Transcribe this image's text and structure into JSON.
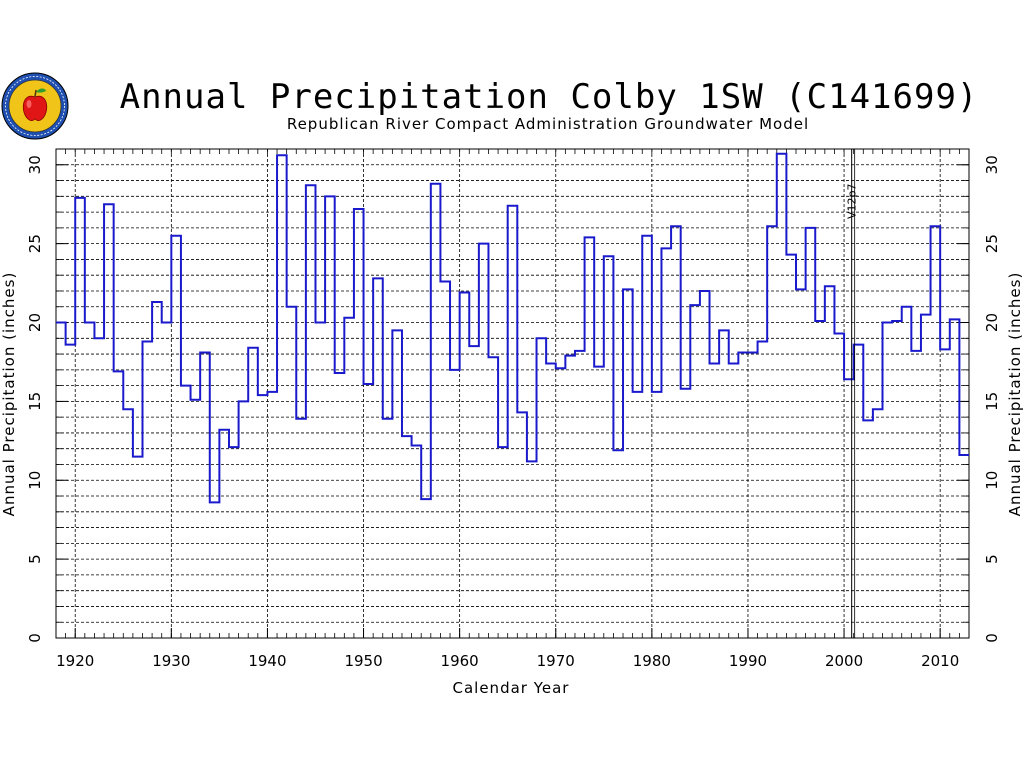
{
  "chart_data": {
    "type": "line",
    "step": true,
    "title": "Annual Precipitation Colby 1SW (C141699)",
    "subtitle": "Republican River Compact Administration Groundwater Model",
    "xlabel": "Calendar Year",
    "ylabel": "Annual Precipitation (inches)",
    "xlim": [
      1918,
      2013
    ],
    "ylim": [
      0,
      31
    ],
    "x_ticks": [
      1920,
      1930,
      1940,
      1950,
      1960,
      1970,
      1980,
      1990,
      2000,
      2010
    ],
    "y_ticks": [
      0,
      5,
      10,
      15,
      20,
      25,
      30
    ],
    "grid": true,
    "series": [
      {
        "color": "#1a1acc",
        "x": [
          1918,
          1919,
          1920,
          1921,
          1922,
          1923,
          1924,
          1925,
          1926,
          1927,
          1928,
          1929,
          1930,
          1931,
          1932,
          1933,
          1934,
          1935,
          1936,
          1937,
          1938,
          1939,
          1940,
          1941,
          1942,
          1943,
          1944,
          1945,
          1946,
          1947,
          1948,
          1949,
          1950,
          1951,
          1952,
          1953,
          1954,
          1955,
          1956,
          1957,
          1958,
          1959,
          1960,
          1961,
          1962,
          1963,
          1964,
          1965,
          1966,
          1967,
          1968,
          1969,
          1970,
          1971,
          1972,
          1973,
          1974,
          1975,
          1976,
          1977,
          1978,
          1979,
          1980,
          1981,
          1982,
          1983,
          1984,
          1985,
          1986,
          1987,
          1988,
          1989,
          1990,
          1991,
          1992,
          1993,
          1994,
          1995,
          1996,
          1997,
          1998,
          1999,
          2000,
          2001,
          2002,
          2003,
          2004,
          2005,
          2006,
          2007,
          2008,
          2009,
          2010,
          2011,
          2012
        ],
        "y": [
          20.0,
          18.6,
          27.9,
          20.0,
          19.0,
          27.5,
          16.9,
          14.5,
          11.5,
          18.8,
          21.3,
          20.0,
          25.5,
          16.0,
          15.1,
          18.1,
          8.6,
          13.2,
          12.1,
          15.0,
          18.4,
          15.4,
          15.6,
          30.6,
          21.0,
          13.9,
          28.7,
          20.0,
          28.0,
          16.8,
          20.3,
          27.2,
          16.1,
          22.8,
          13.9,
          19.5,
          12.8,
          12.2,
          8.8,
          28.8,
          22.6,
          17.0,
          21.9,
          18.5,
          25.0,
          17.8,
          12.1,
          27.4,
          14.3,
          11.2,
          19.0,
          17.4,
          17.1,
          17.9,
          18.2,
          25.4,
          17.2,
          24.2,
          11.9,
          22.1,
          15.6,
          25.5,
          15.6,
          24.7,
          26.1,
          15.8,
          21.1,
          22.0,
          17.4,
          19.5,
          17.4,
          18.1,
          18.1,
          18.8,
          26.1,
          30.7,
          24.3,
          22.1,
          26.0,
          20.1,
          22.3,
          19.3,
          16.4,
          18.6,
          13.8,
          14.5,
          20.0,
          20.1,
          21.0,
          18.2,
          20.5,
          26.1,
          18.3,
          20.2,
          11.6
        ]
      }
    ],
    "annotations": [
      {
        "x": 2001,
        "text": "V12p7"
      }
    ]
  },
  "logo": {
    "name": "apple-seal-logo"
  }
}
